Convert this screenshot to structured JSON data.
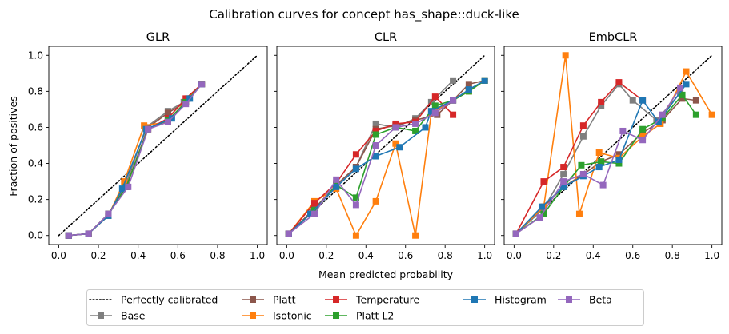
{
  "chart_data": {
    "suptitle": "Calibration curves for concept has_shape::duck-like",
    "type": "line",
    "xlabel": "Mean predicted probability",
    "ylabel": "Fraction of positives",
    "xlim": [
      -0.05,
      1.05
    ],
    "ylim": [
      -0.05,
      1.05
    ],
    "xticks": [
      "0.0",
      "0.2",
      "0.4",
      "0.6",
      "0.8",
      "1.0"
    ],
    "yticks": [
      "0.0",
      "0.2",
      "0.4",
      "0.6",
      "0.8",
      "1.0"
    ],
    "grid": false,
    "legend_position": "bottom-center",
    "legend": [
      {
        "label": "Perfectly calibrated",
        "color": "#000000",
        "style": "dotted"
      },
      {
        "label": "Base",
        "color": "#7f7f7f"
      },
      {
        "label": "Platt",
        "color": "#8c564b"
      },
      {
        "label": "Isotonic",
        "color": "#ff7f0e"
      },
      {
        "label": "Temperature",
        "color": "#d62728"
      },
      {
        "label": "Platt L2",
        "color": "#2ca02c"
      },
      {
        "label": "Histogram",
        "color": "#1f77b4"
      },
      {
        "label": "Beta",
        "color": "#9467bd"
      }
    ],
    "panels": [
      {
        "title": "GLR",
        "series": [
          {
            "name": "Base",
            "color": "#7f7f7f",
            "points": [
              [
                0.05,
                0.0
              ],
              [
                0.15,
                0.01
              ],
              [
                0.25,
                0.11
              ],
              [
                0.34,
                0.29
              ],
              [
                0.44,
                0.6
              ],
              [
                0.55,
                0.69
              ],
              [
                0.63,
                0.74
              ],
              [
                0.72,
                0.84
              ]
            ]
          },
          {
            "name": "Platt",
            "color": "#8c564b",
            "points": [
              [
                0.05,
                0.0
              ],
              [
                0.15,
                0.01
              ],
              [
                0.25,
                0.12
              ],
              [
                0.34,
                0.27
              ],
              [
                0.45,
                0.6
              ],
              [
                0.55,
                0.68
              ],
              [
                0.64,
                0.74
              ],
              [
                0.72,
                0.84
              ]
            ]
          },
          {
            "name": "Isotonic",
            "color": "#ff7f0e",
            "points": [
              [
                0.05,
                0.0
              ],
              [
                0.15,
                0.01
              ],
              [
                0.25,
                0.11
              ],
              [
                0.33,
                0.3
              ],
              [
                0.43,
                0.61
              ],
              [
                0.55,
                0.63
              ],
              [
                0.65,
                0.76
              ],
              [
                0.72,
                0.84
              ]
            ]
          },
          {
            "name": "Temperature",
            "color": "#d62728",
            "points": [
              [
                0.05,
                0.0
              ],
              [
                0.15,
                0.01
              ],
              [
                0.25,
                0.12
              ],
              [
                0.34,
                0.27
              ],
              [
                0.45,
                0.59
              ],
              [
                0.55,
                0.65
              ],
              [
                0.64,
                0.76
              ],
              [
                0.72,
                0.84
              ]
            ]
          },
          {
            "name": "Platt L2",
            "color": "#2ca02c",
            "points": [
              [
                0.05,
                0.0
              ],
              [
                0.15,
                0.01
              ],
              [
                0.25,
                0.12
              ],
              [
                0.34,
                0.27
              ],
              [
                0.45,
                0.59
              ],
              [
                0.55,
                0.64
              ],
              [
                0.64,
                0.74
              ],
              [
                0.72,
                0.84
              ]
            ]
          },
          {
            "name": "Histogram",
            "color": "#1f77b4",
            "points": [
              [
                0.05,
                0.0
              ],
              [
                0.15,
                0.01
              ],
              [
                0.25,
                0.11
              ],
              [
                0.32,
                0.26
              ],
              [
                0.44,
                0.59
              ],
              [
                0.57,
                0.65
              ],
              [
                0.66,
                0.76
              ],
              [
                0.72,
                0.84
              ]
            ]
          },
          {
            "name": "Beta",
            "color": "#9467bd",
            "points": [
              [
                0.05,
                0.0
              ],
              [
                0.15,
                0.01
              ],
              [
                0.25,
                0.12
              ],
              [
                0.35,
                0.27
              ],
              [
                0.45,
                0.59
              ],
              [
                0.55,
                0.63
              ],
              [
                0.64,
                0.73
              ],
              [
                0.72,
                0.84
              ]
            ]
          }
        ]
      },
      {
        "title": "CLR",
        "series": [
          {
            "name": "Base",
            "color": "#7f7f7f",
            "points": [
              [
                0.01,
                0.01
              ],
              [
                0.13,
                0.13
              ],
              [
                0.25,
                0.28
              ],
              [
                0.35,
                0.38
              ],
              [
                0.45,
                0.62
              ],
              [
                0.55,
                0.6
              ],
              [
                0.65,
                0.65
              ],
              [
                0.73,
                0.74
              ],
              [
                0.84,
                0.86
              ]
            ]
          },
          {
            "name": "Platt",
            "color": "#8c564b",
            "points": [
              [
                0.01,
                0.01
              ],
              [
                0.14,
                0.15
              ],
              [
                0.25,
                0.28
              ],
              [
                0.35,
                0.38
              ],
              [
                0.45,
                0.59
              ],
              [
                0.55,
                0.61
              ],
              [
                0.65,
                0.64
              ],
              [
                0.76,
                0.67
              ],
              [
                0.84,
                0.75
              ],
              [
                0.92,
                0.84
              ],
              [
                1.0,
                0.86
              ]
            ]
          },
          {
            "name": "Isotonic",
            "color": "#ff7f0e",
            "points": [
              [
                0.01,
                0.01
              ],
              [
                0.14,
                0.19
              ],
              [
                0.25,
                0.26
              ],
              [
                0.35,
                0.0
              ],
              [
                0.45,
                0.19
              ],
              [
                0.55,
                0.51
              ],
              [
                0.65,
                0.0
              ],
              [
                0.73,
                0.68
              ],
              [
                0.84,
                0.75
              ],
              [
                0.92,
                0.8
              ],
              [
                1.0,
                0.86
              ]
            ]
          },
          {
            "name": "Temperature",
            "color": "#d62728",
            "points": [
              [
                0.01,
                0.01
              ],
              [
                0.14,
                0.18
              ],
              [
                0.25,
                0.29
              ],
              [
                0.35,
                0.45
              ],
              [
                0.45,
                0.58
              ],
              [
                0.55,
                0.62
              ],
              [
                0.65,
                0.63
              ],
              [
                0.75,
                0.77
              ],
              [
                0.84,
                0.67
              ]
            ]
          },
          {
            "name": "Platt L2",
            "color": "#2ca02c",
            "points": [
              [
                0.01,
                0.01
              ],
              [
                0.14,
                0.14
              ],
              [
                0.25,
                0.28
              ],
              [
                0.35,
                0.21
              ],
              [
                0.45,
                0.56
              ],
              [
                0.55,
                0.6
              ],
              [
                0.65,
                0.58
              ],
              [
                0.75,
                0.72
              ],
              [
                0.84,
                0.75
              ],
              [
                0.92,
                0.8
              ],
              [
                1.0,
                0.86
              ]
            ]
          },
          {
            "name": "Histogram",
            "color": "#1f77b4",
            "points": [
              [
                0.01,
                0.01
              ],
              [
                0.12,
                0.12
              ],
              [
                0.25,
                0.27
              ],
              [
                0.35,
                0.37
              ],
              [
                0.45,
                0.44
              ],
              [
                0.57,
                0.49
              ],
              [
                0.7,
                0.6
              ],
              [
                0.73,
                0.69
              ],
              [
                0.84,
                0.75
              ],
              [
                0.92,
                0.81
              ],
              [
                1.0,
                0.86
              ]
            ]
          },
          {
            "name": "Beta",
            "color": "#9467bd",
            "points": [
              [
                0.01,
                0.01
              ],
              [
                0.14,
                0.12
              ],
              [
                0.25,
                0.31
              ],
              [
                0.35,
                0.17
              ],
              [
                0.45,
                0.5
              ],
              [
                0.55,
                0.6
              ],
              [
                0.65,
                0.62
              ],
              [
                0.75,
                0.68
              ],
              [
                0.84,
                0.75
              ]
            ]
          }
        ]
      },
      {
        "title": "EmbCLR",
        "series": [
          {
            "name": "Base",
            "color": "#7f7f7f",
            "points": [
              [
                0.01,
                0.01
              ],
              [
                0.15,
                0.15
              ],
              [
                0.25,
                0.34
              ],
              [
                0.35,
                0.55
              ],
              [
                0.44,
                0.72
              ],
              [
                0.53,
                0.84
              ],
              [
                0.6,
                0.75
              ],
              [
                0.72,
                0.64
              ],
              [
                0.84,
                0.79
              ]
            ]
          },
          {
            "name": "Platt",
            "color": "#8c564b",
            "points": [
              [
                0.01,
                0.01
              ],
              [
                0.15,
                0.16
              ],
              [
                0.25,
                0.27
              ],
              [
                0.35,
                0.34
              ],
              [
                0.44,
                0.41
              ],
              [
                0.53,
                0.45
              ],
              [
                0.65,
                0.57
              ],
              [
                0.75,
                0.64
              ],
              [
                0.85,
                0.76
              ],
              [
                0.92,
                0.75
              ]
            ]
          },
          {
            "name": "Isotonic",
            "color": "#ff7f0e",
            "points": [
              [
                0.01,
                0.01
              ],
              [
                0.15,
                0.16
              ],
              [
                0.26,
                1.0
              ],
              [
                0.33,
                0.12
              ],
              [
                0.43,
                0.46
              ],
              [
                0.53,
                0.43
              ],
              [
                0.65,
                0.55
              ],
              [
                0.74,
                0.62
              ],
              [
                0.87,
                0.91
              ],
              [
                1.0,
                0.67
              ]
            ]
          },
          {
            "name": "Temperature",
            "color": "#d62728",
            "points": [
              [
                0.01,
                0.01
              ],
              [
                0.15,
                0.3
              ],
              [
                0.25,
                0.38
              ],
              [
                0.35,
                0.61
              ],
              [
                0.44,
                0.74
              ],
              [
                0.53,
                0.85
              ],
              [
                0.65,
                0.75
              ]
            ]
          },
          {
            "name": "Platt L2",
            "color": "#2ca02c",
            "points": [
              [
                0.01,
                0.01
              ],
              [
                0.15,
                0.12
              ],
              [
                0.25,
                0.27
              ],
              [
                0.34,
                0.39
              ],
              [
                0.44,
                0.41
              ],
              [
                0.53,
                0.4
              ],
              [
                0.65,
                0.59
              ],
              [
                0.75,
                0.65
              ],
              [
                0.85,
                0.78
              ],
              [
                0.92,
                0.67
              ]
            ]
          },
          {
            "name": "Histogram",
            "color": "#1f77b4",
            "points": [
              [
                0.01,
                0.01
              ],
              [
                0.14,
                0.16
              ],
              [
                0.25,
                0.27
              ],
              [
                0.35,
                0.33
              ],
              [
                0.43,
                0.38
              ],
              [
                0.53,
                0.42
              ],
              [
                0.65,
                0.75
              ],
              [
                0.73,
                0.63
              ],
              [
                0.87,
                0.84
              ]
            ]
          },
          {
            "name": "Beta",
            "color": "#9467bd",
            "points": [
              [
                0.01,
                0.01
              ],
              [
                0.13,
                0.1
              ],
              [
                0.25,
                0.3
              ],
              [
                0.35,
                0.34
              ],
              [
                0.45,
                0.28
              ],
              [
                0.55,
                0.58
              ],
              [
                0.65,
                0.53
              ],
              [
                0.75,
                0.67
              ],
              [
                0.84,
                0.82
              ]
            ]
          }
        ]
      }
    ]
  }
}
